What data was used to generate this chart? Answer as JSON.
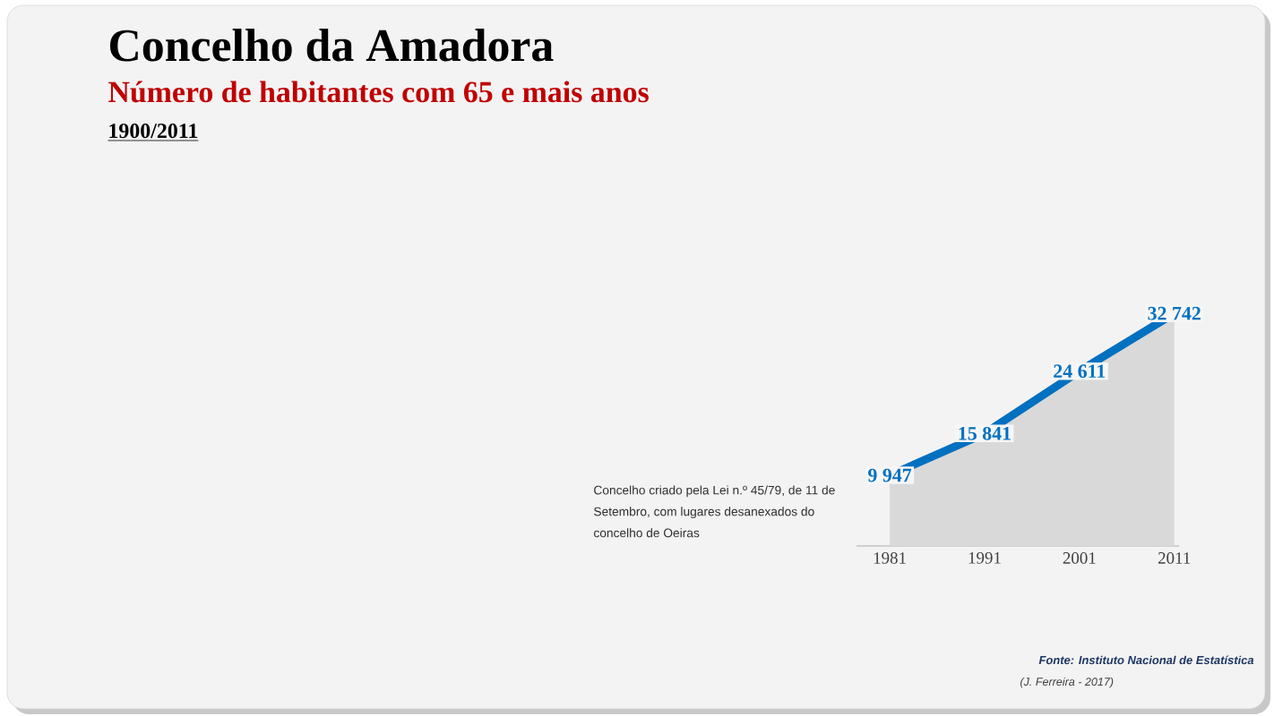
{
  "chart_data": {
    "type": "area",
    "title": "Concelho da Amadora",
    "subtitle": "Número de habitantes com 65 e mais anos",
    "categories": [
      "1981",
      "1991",
      "2001",
      "2011"
    ],
    "series": [
      {
        "color": "#0070c0",
        "values": [
          9947,
          15841,
          24611,
          32742
        ],
        "value_labels": [
          "9 947",
          "15 841",
          "24 611",
          "32 742"
        ]
      }
    ],
    "annotations": [
      "1900/2011",
      "Concelho criado pela Lei n.º 45/79, de 11 de Setembro, com lugares desanexados do concelho de Oeiras",
      "Fonte: Instituto Nacional de Estatística",
      "(J. Ferreira - 2017)"
    ]
  }
}
